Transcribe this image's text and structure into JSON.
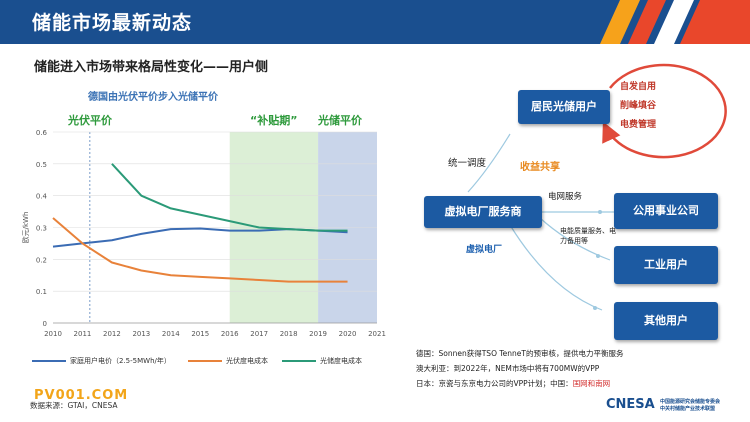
{
  "header": {
    "title": "储能市场最新动态"
  },
  "subtitle": "储能进入市场带来格局性变化——用户侧",
  "chart_data": {
    "type": "line",
    "title": "德国由光伏平价步入光储平价",
    "ylabel": "欧元/kWh",
    "xlim": [
      2010,
      2021
    ],
    "ylim": [
      0,
      0.6
    ],
    "x_ticks": [
      "2010",
      "2011",
      "2012",
      "2013",
      "2014",
      "2015",
      "2016",
      "2017",
      "2018",
      "2019",
      "2020",
      "2021"
    ],
    "y_ticks": [
      "0",
      "0.1",
      "0.2",
      "0.3",
      "0.4",
      "0.5",
      "0.6"
    ],
    "series": [
      {
        "name": "家庭用户电价（2.5-5MWh/年）",
        "color": "#3b6cb4",
        "x": [
          2010,
          2011,
          2012,
          2013,
          2014,
          2015,
          2016,
          2017,
          2018,
          2019,
          2020
        ],
        "y": [
          0.24,
          0.25,
          0.26,
          0.28,
          0.295,
          0.297,
          0.29,
          0.29,
          0.295,
          0.29,
          0.285
        ]
      },
      {
        "name": "光伏度电成本",
        "color": "#e8823a",
        "x": [
          2010,
          2011,
          2012,
          2013,
          2014,
          2015,
          2016,
          2017,
          2018,
          2019,
          2020
        ],
        "y": [
          0.33,
          0.25,
          0.19,
          0.165,
          0.15,
          0.145,
          0.14,
          0.135,
          0.13,
          0.13,
          0.13
        ]
      },
      {
        "name": "光储度电成本",
        "color": "#2b9a78",
        "x": [
          2012,
          2013,
          2014,
          2015,
          2016,
          2017,
          2018,
          2019,
          2020
        ],
        "y": [
          0.5,
          0.4,
          0.36,
          0.34,
          0.32,
          0.3,
          0.295,
          0.29,
          0.29
        ]
      }
    ],
    "regions": [
      {
        "label": "光伏平价",
        "from": 2011.25,
        "to": 2011.25,
        "kind": "dashed-line"
      },
      {
        "label": "“补贴期”",
        "from": 2016,
        "to": 2019,
        "color": "#dcefd6"
      },
      {
        "label": "光储平价",
        "from": 2019,
        "to": 2021,
        "color": "#c9d5ea"
      }
    ]
  },
  "source": "数据来源：GTAI，CNESA",
  "watermark": "PV001.COM",
  "diagram": {
    "residential": "居民光储用户",
    "vpp": "虚拟电厂服务商",
    "utility": "公用事业公司",
    "industrial": "工业用户",
    "other": "其他用户",
    "cycle": [
      "自发自用",
      "削峰填谷",
      "电费管理"
    ],
    "unify": "统一调度",
    "revenue": "收益共享",
    "grid_service": "电网服务",
    "quality": "电能质量服务、电力备用等",
    "vpp_label": "虚拟电厂"
  },
  "notes": [
    {
      "text": "德国：Sonnen获得TSO TenneT的预审核，提供电力平衡服务",
      "red": ""
    },
    {
      "text": "澳大利亚：到2022年，NEM市场中将有700MW的VPP",
      "red": ""
    },
    {
      "text": "日本：京瓷与东京电力公司的VPP计划；中国：",
      "red": "国网和南网"
    }
  ],
  "logo": {
    "name": "CNESA",
    "sub1": "中国能源研究会储能专委会",
    "sub2": "中关村储能产业技术联盟"
  },
  "colors": {
    "header": "#1a4f8f",
    "box": "#1c5aa2",
    "accent_green": "#2e9a3c",
    "accent_orange": "#e8891e"
  }
}
